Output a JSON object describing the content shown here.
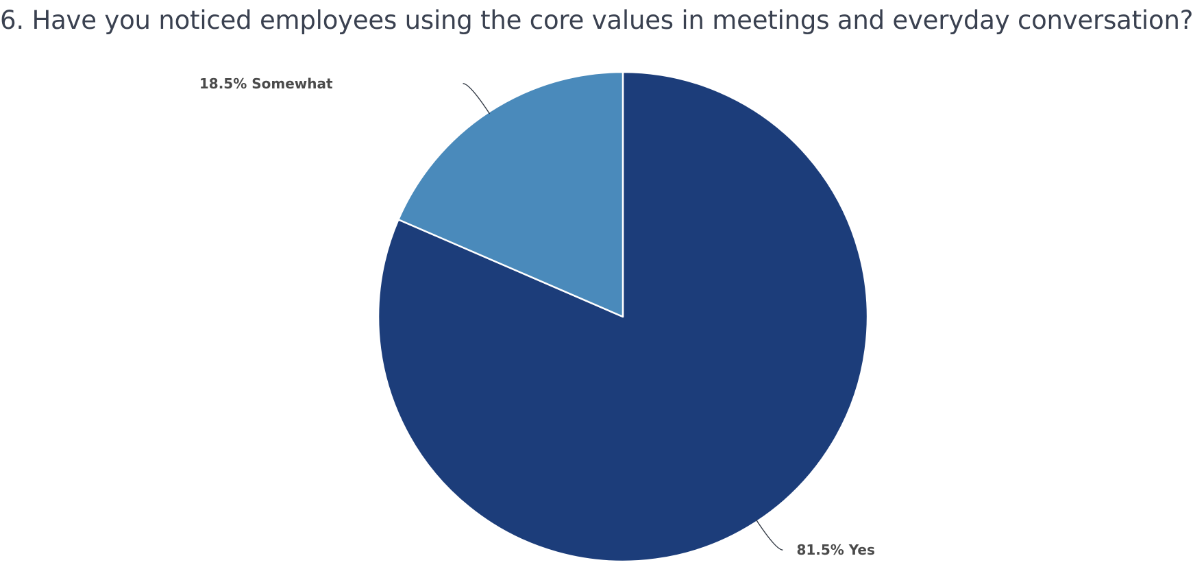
{
  "chart_data": {
    "type": "pie",
    "title": "6. Have you noticed employees using the core values in meetings and everyday conversation?",
    "slices": [
      {
        "label": "Yes",
        "value": 81.5,
        "display": "81.5% Yes",
        "color": "#1c3d7a"
      },
      {
        "label": "Somewhat",
        "value": 18.5,
        "display": "18.5% Somewhat",
        "color": "#4a8abb"
      }
    ],
    "legend": "none"
  }
}
